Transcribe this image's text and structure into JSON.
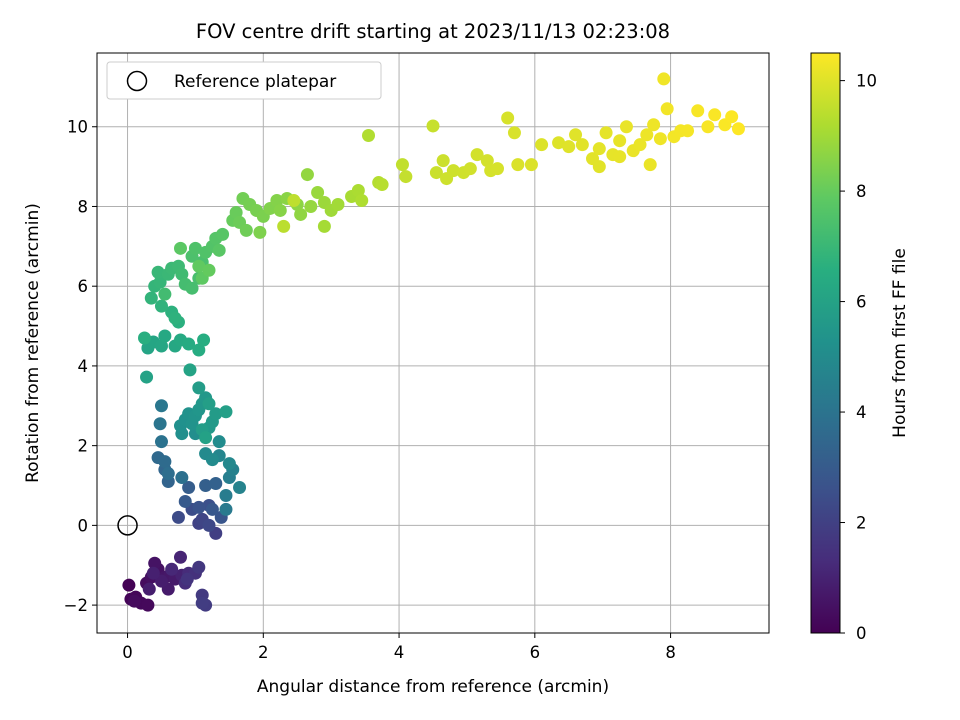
{
  "chart_data": {
    "type": "scatter",
    "title": "FOV centre drift starting at 2023/11/13 02:23:08",
    "xlabel": "Angular distance from reference (arcmin)",
    "ylabel": "Rotation from reference (arcmin)",
    "xlim": [
      -0.45,
      9.45
    ],
    "ylim": [
      -2.7,
      11.85
    ],
    "xticks": [
      0,
      2,
      4,
      6,
      8
    ],
    "yticks": [
      -2,
      0,
      2,
      4,
      6,
      8,
      10
    ],
    "grid": true,
    "legend": {
      "position": "top-left",
      "entries": [
        "Reference platepar"
      ]
    },
    "reference_point": {
      "x": 0,
      "y": 0
    },
    "colorbar": {
      "label": "Hours from first FF file",
      "colormap": "viridis",
      "range": [
        0,
        10.5
      ],
      "ticks": [
        0,
        2,
        4,
        6,
        8,
        10
      ]
    },
    "series": [
      {
        "name": "Hours from first FF file",
        "points": [
          [
            0.02,
            -1.5,
            0.05
          ],
          [
            0.05,
            -1.85,
            0.1
          ],
          [
            0.12,
            -1.8,
            0.15
          ],
          [
            0.2,
            -1.95,
            0.2
          ],
          [
            0.3,
            -2.0,
            0.25
          ],
          [
            0.1,
            -1.9,
            0.3
          ],
          [
            0.28,
            -1.45,
            0.35
          ],
          [
            0.35,
            -1.3,
            0.45
          ],
          [
            0.45,
            -1.1,
            0.5
          ],
          [
            0.4,
            -0.95,
            0.55
          ],
          [
            0.55,
            -1.3,
            0.6
          ],
          [
            0.62,
            -1.25,
            0.7
          ],
          [
            0.7,
            -1.35,
            0.75
          ],
          [
            0.6,
            -1.6,
            0.8
          ],
          [
            0.5,
            -1.4,
            0.85
          ],
          [
            0.32,
            -1.6,
            0.9
          ],
          [
            0.38,
            -1.2,
            0.95
          ],
          [
            0.8,
            -1.25,
            1.0
          ],
          [
            0.78,
            -0.8,
            1.1
          ],
          [
            0.65,
            -1.1,
            1.2
          ],
          [
            0.9,
            -1.2,
            1.3
          ],
          [
            0.85,
            -1.45,
            1.4
          ],
          [
            1.0,
            -1.2,
            1.5
          ],
          [
            0.88,
            -1.35,
            1.6
          ],
          [
            1.05,
            -1.05,
            1.7
          ],
          [
            1.1,
            -1.75,
            1.8
          ],
          [
            1.15,
            -2.0,
            1.85
          ],
          [
            1.1,
            -1.95,
            1.9
          ],
          [
            1.3,
            -0.2,
            2.0
          ],
          [
            1.05,
            0.05,
            2.1
          ],
          [
            1.1,
            0.15,
            2.2
          ],
          [
            1.2,
            0.0,
            2.3
          ],
          [
            0.75,
            0.2,
            2.4
          ],
          [
            0.95,
            0.4,
            2.5
          ],
          [
            1.2,
            0.5,
            2.6
          ],
          [
            1.05,
            0.45,
            2.7
          ],
          [
            1.38,
            0.2,
            2.8
          ],
          [
            1.25,
            0.4,
            2.9
          ],
          [
            0.85,
            0.6,
            3.0
          ],
          [
            0.9,
            0.95,
            3.1
          ],
          [
            1.15,
            1.0,
            3.2
          ],
          [
            1.3,
            1.05,
            3.3
          ],
          [
            0.6,
            1.1,
            3.4
          ],
          [
            0.55,
            1.4,
            3.5
          ],
          [
            0.45,
            1.7,
            3.6
          ],
          [
            0.55,
            1.6,
            3.7
          ],
          [
            0.6,
            1.3,
            3.8
          ],
          [
            0.8,
            1.2,
            3.9
          ],
          [
            0.5,
            2.1,
            4.0
          ],
          [
            0.48,
            2.55,
            4.1
          ],
          [
            0.5,
            3.0,
            4.2
          ],
          [
            1.45,
            0.4,
            4.3
          ],
          [
            1.45,
            0.75,
            4.4
          ],
          [
            1.5,
            1.2,
            4.5
          ],
          [
            1.55,
            1.4,
            4.6
          ],
          [
            1.65,
            0.95,
            4.7
          ],
          [
            1.35,
            1.75,
            4.8
          ],
          [
            1.5,
            1.55,
            4.9
          ],
          [
            1.15,
            1.8,
            5.0
          ],
          [
            1.25,
            1.65,
            5.05
          ],
          [
            1.35,
            2.1,
            5.1
          ],
          [
            1.0,
            2.3,
            5.15
          ],
          [
            0.8,
            2.3,
            5.2
          ],
          [
            0.78,
            2.5,
            5.25
          ],
          [
            0.85,
            2.65,
            5.3
          ],
          [
            0.9,
            2.8,
            5.35
          ],
          [
            0.95,
            2.55,
            5.4
          ],
          [
            1.0,
            2.75,
            5.45
          ],
          [
            1.05,
            2.9,
            5.5
          ],
          [
            1.1,
            3.05,
            5.55
          ],
          [
            1.15,
            3.2,
            5.6
          ],
          [
            1.2,
            2.45,
            5.65
          ],
          [
            1.25,
            2.6,
            5.7
          ],
          [
            1.3,
            2.8,
            5.75
          ],
          [
            1.05,
            3.45,
            5.8
          ],
          [
            1.1,
            2.4,
            5.85
          ],
          [
            1.2,
            3.05,
            5.9
          ],
          [
            1.45,
            2.85,
            5.95
          ],
          [
            1.15,
            2.2,
            6.0
          ],
          [
            0.28,
            3.72,
            6.05
          ],
          [
            0.92,
            3.9,
            6.1
          ],
          [
            0.3,
            4.45,
            6.15
          ],
          [
            0.38,
            4.6,
            6.2
          ],
          [
            0.5,
            4.5,
            6.25
          ],
          [
            0.7,
            4.5,
            6.3
          ],
          [
            0.55,
            4.75,
            6.35
          ],
          [
            0.78,
            4.65,
            6.4
          ],
          [
            0.9,
            4.55,
            6.45
          ],
          [
            1.05,
            4.4,
            6.5
          ],
          [
            1.12,
            4.65,
            6.55
          ],
          [
            0.25,
            4.7,
            6.6
          ],
          [
            0.75,
            5.1,
            6.65
          ],
          [
            0.65,
            5.35,
            6.7
          ],
          [
            0.7,
            5.2,
            6.75
          ],
          [
            0.5,
            5.5,
            6.8
          ],
          [
            0.35,
            5.7,
            6.85
          ],
          [
            0.4,
            6.0,
            6.9
          ],
          [
            0.48,
            6.1,
            6.95
          ],
          [
            0.45,
            6.35,
            7.0
          ],
          [
            0.6,
            6.3,
            7.05
          ],
          [
            0.65,
            6.45,
            7.1
          ],
          [
            0.75,
            6.5,
            7.15
          ],
          [
            0.8,
            6.3,
            7.2
          ],
          [
            0.55,
            5.8,
            7.25
          ],
          [
            0.85,
            6.05,
            7.3
          ],
          [
            0.95,
            5.95,
            7.35
          ],
          [
            1.05,
            6.2,
            7.4
          ],
          [
            1.1,
            6.6,
            7.45
          ],
          [
            0.95,
            6.75,
            7.5
          ],
          [
            1.0,
            6.95,
            7.55
          ],
          [
            1.15,
            6.85,
            7.6
          ],
          [
            1.25,
            7.0,
            7.65
          ],
          [
            1.3,
            7.2,
            7.7
          ],
          [
            1.4,
            7.3,
            7.75
          ],
          [
            1.35,
            6.9,
            7.8
          ],
          [
            0.78,
            6.95,
            7.85
          ],
          [
            1.1,
            6.2,
            7.9
          ],
          [
            1.05,
            6.5,
            7.95
          ],
          [
            1.2,
            6.4,
            8.0
          ],
          [
            1.55,
            7.65,
            8.05
          ],
          [
            1.6,
            7.85,
            8.1
          ],
          [
            1.65,
            7.6,
            8.15
          ],
          [
            1.75,
            7.4,
            8.2
          ],
          [
            1.7,
            8.2,
            8.25
          ],
          [
            1.8,
            8.05,
            8.3
          ],
          [
            1.9,
            7.9,
            8.35
          ],
          [
            2.0,
            7.75,
            8.4
          ],
          [
            1.95,
            7.35,
            8.45
          ],
          [
            2.1,
            7.95,
            8.5
          ],
          [
            2.2,
            8.15,
            8.55
          ],
          [
            2.25,
            7.9,
            8.6
          ],
          [
            2.35,
            8.2,
            8.65
          ],
          [
            2.5,
            8.05,
            8.7
          ],
          [
            2.55,
            7.8,
            8.75
          ],
          [
            2.65,
            8.8,
            8.8
          ],
          [
            2.7,
            8.0,
            8.85
          ],
          [
            2.8,
            8.35,
            8.9
          ],
          [
            2.9,
            8.1,
            8.95
          ],
          [
            3.0,
            7.9,
            9.0
          ],
          [
            3.1,
            8.05,
            9.05
          ],
          [
            2.9,
            7.5,
            9.1
          ],
          [
            3.3,
            8.25,
            9.15
          ],
          [
            3.4,
            8.4,
            9.2
          ],
          [
            3.45,
            8.15,
            9.25
          ],
          [
            3.55,
            9.78,
            9.3
          ],
          [
            3.7,
            8.6,
            9.35
          ],
          [
            3.75,
            8.55,
            9.4
          ],
          [
            2.3,
            7.5,
            9.45
          ],
          [
            2.45,
            8.15,
            9.5
          ],
          [
            4.05,
            9.05,
            9.55
          ],
          [
            4.1,
            8.75,
            9.6
          ],
          [
            4.5,
            10.02,
            9.65
          ],
          [
            4.55,
            8.85,
            9.7
          ],
          [
            4.65,
            9.15,
            9.72
          ],
          [
            4.7,
            8.7,
            9.74
          ],
          [
            4.8,
            8.9,
            9.76
          ],
          [
            4.95,
            8.85,
            9.78
          ],
          [
            5.05,
            8.95,
            9.8
          ],
          [
            5.15,
            9.3,
            9.82
          ],
          [
            5.3,
            9.15,
            9.84
          ],
          [
            5.35,
            8.9,
            9.86
          ],
          [
            5.45,
            8.95,
            9.88
          ],
          [
            5.6,
            10.22,
            9.9
          ],
          [
            5.7,
            9.85,
            9.92
          ],
          [
            5.75,
            9.05,
            9.94
          ],
          [
            5.95,
            9.05,
            9.96
          ],
          [
            6.1,
            9.55,
            9.98
          ],
          [
            6.35,
            9.6,
            10.0
          ],
          [
            6.5,
            9.5,
            10.02
          ],
          [
            6.6,
            9.8,
            10.04
          ],
          [
            6.7,
            9.55,
            10.06
          ],
          [
            6.85,
            9.2,
            10.08
          ],
          [
            6.95,
            9.45,
            10.1
          ],
          [
            7.05,
            9.85,
            10.12
          ],
          [
            7.15,
            9.3,
            10.14
          ],
          [
            7.25,
            9.65,
            10.16
          ],
          [
            7.35,
            10.0,
            10.18
          ],
          [
            7.45,
            9.4,
            10.2
          ],
          [
            7.55,
            9.55,
            10.22
          ],
          [
            7.65,
            9.8,
            10.24
          ],
          [
            7.75,
            10.05,
            10.26
          ],
          [
            7.85,
            9.7,
            10.28
          ],
          [
            7.9,
            11.2,
            10.3
          ],
          [
            7.95,
            10.45,
            10.32
          ],
          [
            8.05,
            9.75,
            10.34
          ],
          [
            8.15,
            9.9,
            10.36
          ],
          [
            8.25,
            9.9,
            10.38
          ],
          [
            8.4,
            10.4,
            10.4
          ],
          [
            8.55,
            10.0,
            10.42
          ],
          [
            8.65,
            10.3,
            10.44
          ],
          [
            8.8,
            10.05,
            10.46
          ],
          [
            8.9,
            10.25,
            10.48
          ],
          [
            9.0,
            9.95,
            10.5
          ],
          [
            7.7,
            9.05,
            10.2
          ],
          [
            7.25,
            9.25,
            10.15
          ],
          [
            6.95,
            9.0,
            10.05
          ]
        ]
      }
    ]
  }
}
